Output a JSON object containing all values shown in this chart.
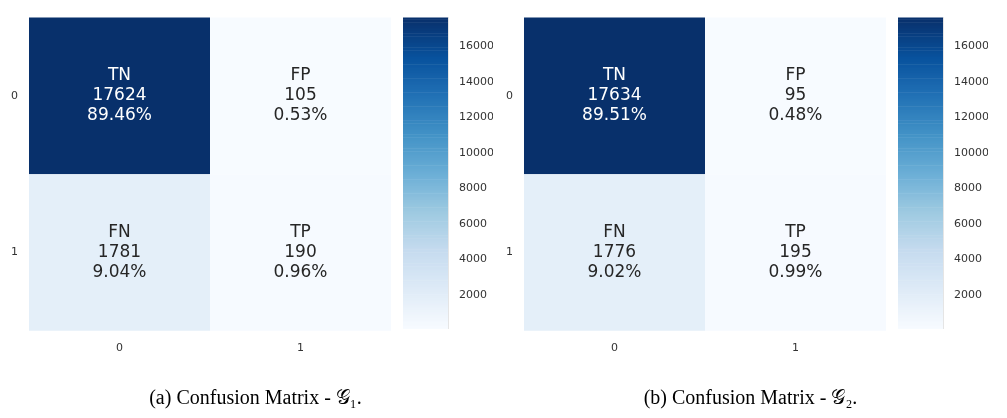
{
  "chart_data": [
    {
      "type": "heatmap",
      "title": "(a) Confusion Matrix - 𝒢₁.",
      "categories": [
        "0",
        "1"
      ],
      "y_categories": [
        "0",
        "1"
      ],
      "cells": [
        [
          17624,
          105
        ],
        [
          1781,
          190
        ]
      ],
      "cell_labels": [
        [
          "TN\n17624\n89.46%",
          "FP\n105\n0.53%"
        ],
        [
          "FN\n1781\n9.04%",
          "TP\n190\n0.96%"
        ]
      ],
      "clim": [
        105,
        17624
      ],
      "cticks": [
        2000,
        4000,
        6000,
        8000,
        10000,
        12000,
        14000,
        16000
      ]
    },
    {
      "type": "heatmap",
      "title": "(b) Confusion Matrix - 𝒢₂.",
      "categories": [
        "0",
        "1"
      ],
      "y_categories": [
        "0",
        "1"
      ],
      "cells": [
        [
          17634,
          95
        ],
        [
          1776,
          195
        ]
      ],
      "cell_labels": [
        [
          "TN\n17634\n89.51%",
          "FP\n95\n0.48%"
        ],
        [
          "FN\n1776\n9.02%",
          "TP\n195\n0.99%"
        ]
      ],
      "clim": [
        95,
        17634
      ],
      "cticks": [
        2000,
        4000,
        6000,
        8000,
        10000,
        12000,
        14000,
        16000
      ]
    }
  ]
}
